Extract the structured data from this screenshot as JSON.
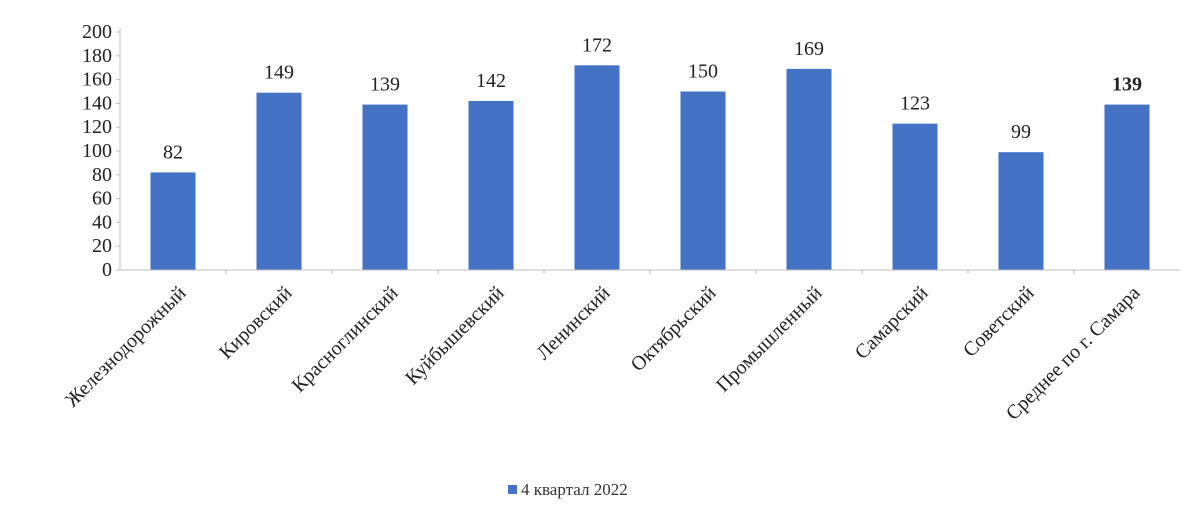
{
  "chart_data": {
    "type": "bar",
    "categories": [
      "Железнодорожный",
      "Кировский",
      "Красноглинский",
      "Куйбышевский",
      "Ленинский",
      "Октябрьский",
      "Промышленный",
      "Самарский",
      "Советский",
      "Среднее по г. Самара"
    ],
    "series": [
      {
        "name": "4 квартал 2022",
        "values": [
          82,
          149,
          139,
          142,
          172,
          150,
          169,
          123,
          99,
          139
        ]
      }
    ],
    "data_labels": [
      "82",
      "149",
      "139",
      "142",
      "172",
      "150",
      "169",
      "123",
      "99",
      "139"
    ],
    "bold_label_index": 9,
    "ylim": [
      0,
      200
    ],
    "yticks": [
      0,
      20,
      40,
      60,
      80,
      100,
      120,
      140,
      160,
      180,
      200
    ],
    "grid": false,
    "legend_position": "bottom",
    "colors": {
      "bar": "#4472C4",
      "axis": "#bfbfbf",
      "text": "#222222"
    }
  }
}
